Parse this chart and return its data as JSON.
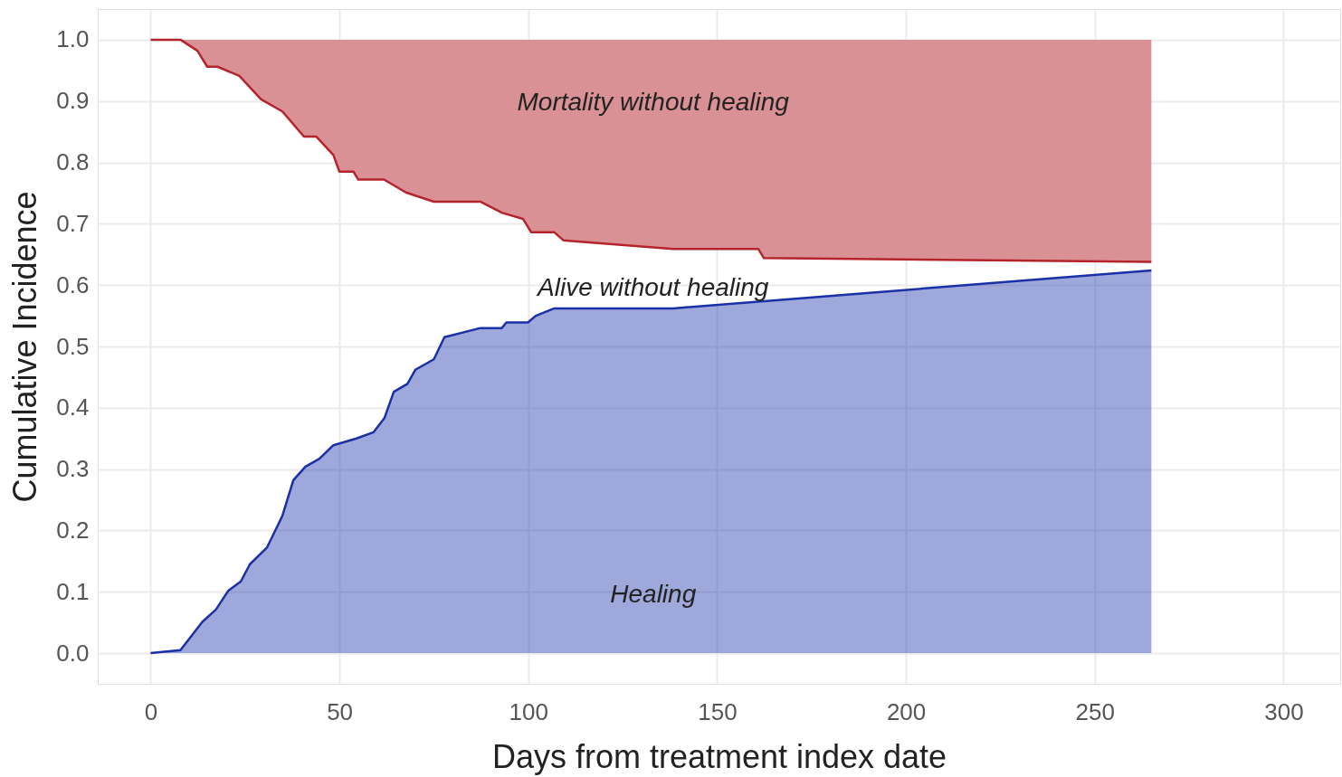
{
  "chart_data": {
    "type": "area",
    "xlabel": "Days from treatment index date",
    "ylabel": "Cumulative Incidence",
    "xlim": [
      -14,
      315
    ],
    "xticks": [
      0,
      50,
      100,
      150,
      200,
      250,
      300
    ],
    "ylim": [
      -0.05,
      1.05
    ],
    "yticks": [
      {
        "value": 0,
        "label": "0.0"
      },
      0.1,
      0.2,
      0.3,
      0.4,
      0.5,
      0.6,
      0.7,
      0.8,
      0.9,
      {
        "value": 1,
        "label": "1.0"
      }
    ],
    "grid": true,
    "series": [
      {
        "color": "#1a30a6",
        "x": [
          0,
          7.9,
          13.7,
          17.3,
          20.6,
          23.9,
          26.3,
          30.8,
          34.9,
          37.8,
          41,
          44.7,
          48.4,
          54.5,
          59,
          61.9,
          64.4,
          68,
          70.1,
          75,
          77.8,
          87.3,
          93,
          94.2,
          99.9,
          102,
          106.9,
          138.4,
          265
        ],
        "values": [
          0,
          0.005,
          0.051,
          0.071,
          0.102,
          0.117,
          0.145,
          0.172,
          0.224,
          0.282,
          0.304,
          0.317,
          0.339,
          0.35,
          0.36,
          0.383,
          0.426,
          0.439,
          0.462,
          0.479,
          0.515,
          0.53,
          0.53,
          0.539,
          0.539,
          0.55,
          0.562,
          0.562,
          0.624
        ]
      },
      {
        "type": "line",
        "color": "#b5242c",
        "x": [
          0,
          7.9,
          12.4,
          15,
          17.7,
          23.5,
          29.2,
          34.9,
          40.6,
          43.9,
          48.4,
          50,
          53.7,
          55,
          61.8,
          67.6,
          75,
          87.3,
          93,
          98.6,
          100.8,
          106.9,
          109.3,
          138.4,
          160.9,
          162.4,
          265
        ],
        "values": [
          1,
          1,
          0.982,
          0.956,
          0.956,
          0.941,
          0.903,
          0.883,
          0.842,
          0.842,
          0.812,
          0.785,
          0.785,
          0.772,
          0.772,
          0.751,
          0.736,
          0.736,
          0.718,
          0.708,
          0.686,
          0.686,
          0.673,
          0.659,
          0.659,
          0.644,
          0.638
        ],
        "lower": [
          1,
          1,
          0.982,
          0.956,
          0.956,
          0.941,
          0.903,
          0.883,
          0.842,
          0.842,
          0.812,
          0.785,
          0.785,
          0.772,
          0.772,
          0.751,
          0.736,
          0.736,
          0.718,
          0.708,
          0.686,
          0.686,
          0.673,
          0.659,
          0.659,
          0.644,
          0.638
        ],
        "upper": [
          1,
          1,
          1,
          1,
          1,
          1,
          1,
          1,
          1,
          1,
          1,
          1,
          1,
          1,
          1,
          1,
          1,
          1,
          1,
          1,
          1,
          1,
          1,
          1,
          1,
          1,
          1
        ]
      }
    ],
    "annotations": [
      "Mortality without healing",
      "Alive without healing",
      "Healing"
    ]
  }
}
